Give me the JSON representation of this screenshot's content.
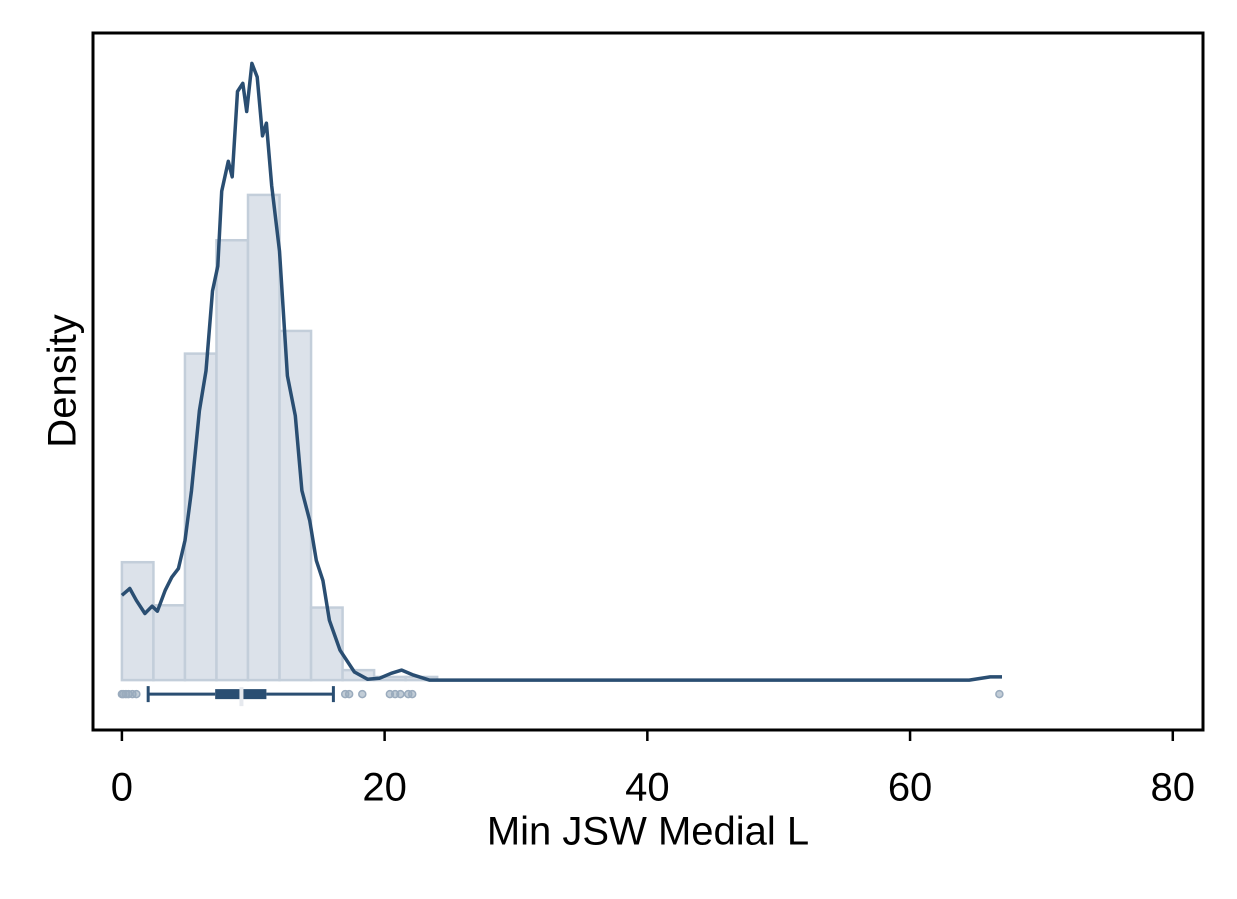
{
  "chart_data": {
    "type": "histogram",
    "xlabel": "Min JSW Medial L",
    "ylabel": "Density",
    "bins": [
      0,
      2.4,
      4.8,
      7.2,
      9.6,
      12,
      14.4,
      16.8,
      19.2,
      21.6,
      24
    ],
    "counts": [
      0.026,
      0.0165,
      0.072,
      0.097,
      0.107,
      0.077,
      0.016,
      0.0022,
      0.0007,
      0.0007
    ],
    "color": "#dce2ea",
    "edgecolor": "#c3ceda",
    "density": {
      "color": "#2a4e72",
      "x": [
        0,
        0.6,
        1.1,
        1.75,
        2.3,
        2.7,
        3.3,
        3.8,
        4.3,
        4.8,
        5.3,
        5.9,
        6.4,
        6.9,
        7.3,
        7.6,
        8.1,
        8.4,
        8.8,
        9.2,
        9.5,
        9.9,
        10.3,
        10.7,
        11.0,
        11.4,
        12.0,
        12.6,
        13.2,
        13.7,
        14.3,
        14.8,
        15.3,
        15.8,
        16.6,
        17.7,
        18.7,
        19.6,
        20.5,
        21.3,
        22.2,
        23.4,
        28.8,
        64.5,
        66.1,
        67.0
      ],
      "y": [
        0.0187,
        0.0202,
        0.0176,
        0.0147,
        0.0163,
        0.0152,
        0.0198,
        0.0227,
        0.0246,
        0.0308,
        0.0418,
        0.0594,
        0.0682,
        0.0858,
        0.0913,
        0.1078,
        0.1144,
        0.111,
        0.1298,
        0.1316,
        0.1254,
        0.136,
        0.133,
        0.12,
        0.1228,
        0.109,
        0.0946,
        0.0671,
        0.0583,
        0.0418,
        0.0352,
        0.0264,
        0.022,
        0.0132,
        0.0066,
        0.0018,
        0.0002,
        0.0004,
        0.0015,
        0.0022,
        0.0011,
        0,
        0,
        0,
        0.0007,
        0.0007
      ]
    },
    "boxplot": {
      "color": "#2a4e72",
      "outlier_color": "#9aabbd",
      "whislo": 2.0,
      "q1": 7.1,
      "median": 9.1,
      "q3": 11.0,
      "whishi": 16.1,
      "fliers": [
        0,
        0.1,
        0.3,
        0.5,
        0.8,
        1.1,
        17.0,
        17.3,
        18.3,
        20.4,
        20.8,
        21.2,
        21.8,
        22.1,
        66.8
      ]
    },
    "xlim": [
      -2.2,
      82.3
    ],
    "xticks": [
      0,
      20,
      40,
      60,
      80
    ],
    "ylim": [
      -0.011,
      0.1427
    ],
    "yticks": []
  }
}
